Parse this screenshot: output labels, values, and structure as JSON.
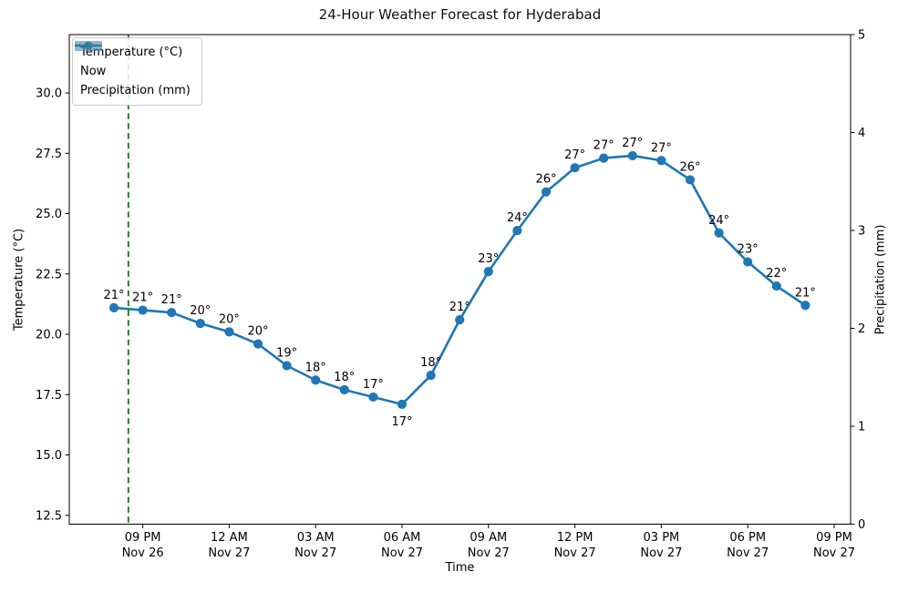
{
  "chart_data": {
    "type": "line",
    "title": "24-Hour Weather Forecast for Hyderabad",
    "xlabel": "Time",
    "ylabel": "Temperature (°C)",
    "ylabel_right": "Precipitation (mm)",
    "x_unit": "hours after 8 PM Nov 26, one point per hour",
    "x": [
      0,
      1,
      2,
      3,
      4,
      5,
      6,
      7,
      8,
      9,
      10,
      11,
      12,
      13,
      14,
      15,
      16,
      17,
      18,
      19,
      20,
      21,
      22,
      23,
      24
    ],
    "series": [
      {
        "name": "Temperature (°C)",
        "type": "line",
        "color": "#1f77b4",
        "values": [
          21.1,
          21.0,
          20.9,
          20.45,
          20.1,
          19.6,
          18.7,
          18.1,
          17.7,
          17.4,
          17.1,
          18.3,
          20.6,
          22.6,
          24.3,
          25.9,
          26.9,
          27.3,
          27.4,
          27.2,
          26.4,
          24.2,
          23.0,
          22.0,
          21.2
        ],
        "point_labels": [
          "21°",
          "21°",
          "21°",
          "20°",
          "20°",
          "20°",
          "19°",
          "18°",
          "18°",
          "17°",
          "17°",
          "18°",
          "21°",
          "23°",
          "24°",
          "26°",
          "27°",
          "27°",
          "27°",
          "27°",
          "26°",
          "24°",
          "23°",
          "22°",
          "21°"
        ]
      },
      {
        "name": "Precipitation (mm)",
        "type": "bar",
        "color": "#4682b4",
        "opacity": 0.6,
        "values": [
          0,
          0,
          0,
          0,
          0,
          0,
          0,
          0,
          0,
          0,
          0,
          0,
          0,
          0,
          0,
          0,
          0,
          0,
          0,
          0,
          0,
          0,
          0,
          0,
          0
        ]
      }
    ],
    "now_line": {
      "label": "Now",
      "x": 0.5,
      "color": "#008000",
      "style": "dashed"
    },
    "x_ticks": [
      {
        "time": "09 PM",
        "date": "Nov 26",
        "hour_offset": 1
      },
      {
        "time": "12 AM",
        "date": "Nov 27",
        "hour_offset": 4
      },
      {
        "time": "03 AM",
        "date": "Nov 27",
        "hour_offset": 7
      },
      {
        "time": "06 AM",
        "date": "Nov 27",
        "hour_offset": 10
      },
      {
        "time": "09 AM",
        "date": "Nov 27",
        "hour_offset": 13
      },
      {
        "time": "12 PM",
        "date": "Nov 27",
        "hour_offset": 16
      },
      {
        "time": "03 PM",
        "date": "Nov 27",
        "hour_offset": 19
      },
      {
        "time": "06 PM",
        "date": "Nov 27",
        "hour_offset": 22
      },
      {
        "time": "09 PM",
        "date": "Nov 27",
        "hour_offset": 25
      }
    ],
    "y_left": {
      "ticks": [
        12.5,
        15.0,
        17.5,
        20.0,
        22.5,
        25.0,
        27.5,
        30.0
      ],
      "lim": [
        12.1,
        32.4
      ]
    },
    "y_right": {
      "ticks": [
        0,
        1,
        2,
        3,
        4,
        5
      ],
      "lim": [
        0,
        5
      ]
    },
    "grid": false,
    "legend_position": "upper left",
    "below_label_index": 10
  }
}
